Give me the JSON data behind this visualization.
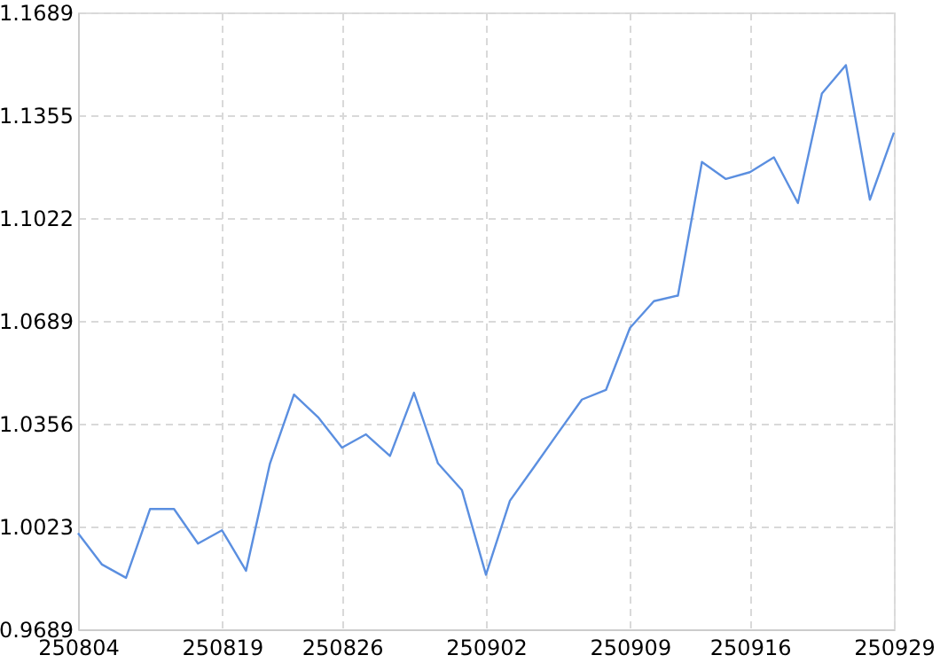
{
  "chart_data": {
    "type": "line",
    "categories": [
      "250804",
      null,
      null,
      null,
      null,
      null,
      "250819",
      null,
      null,
      null,
      null,
      "250826",
      null,
      null,
      null,
      null,
      null,
      "250902",
      null,
      null,
      null,
      null,
      null,
      "250909",
      null,
      null,
      null,
      null,
      "250916",
      null,
      null,
      null,
      null,
      null,
      "250929"
    ],
    "series": [
      {
        "color": "#5b8fe0",
        "values": [
          1.0001,
          0.9899,
          0.9856,
          1.0079,
          1.0079,
          0.9967,
          1.001,
          0.9879,
          1.0227,
          1.045,
          1.0377,
          1.0278,
          1.0321,
          1.0251,
          1.0456,
          1.0227,
          1.014,
          0.9866,
          1.0106,
          1.0215,
          1.0325,
          1.0434,
          1.0465,
          1.0666,
          1.0753,
          1.0771,
          1.1204,
          1.1149,
          1.1171,
          1.1219,
          1.1071,
          1.1426,
          1.1518,
          1.1082,
          1.1299
        ]
      }
    ],
    "ylim": [
      0.9689,
      1.1689
    ],
    "yticks": [
      0.9689,
      1.0023,
      1.0356,
      1.0689,
      1.1022,
      1.1355,
      1.1689
    ],
    "grid": true,
    "marker": "none",
    "line_style": "solid"
  }
}
